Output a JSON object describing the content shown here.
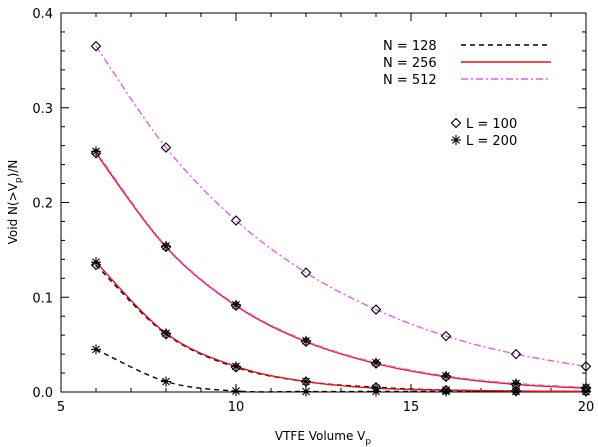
{
  "chart_data": {
    "type": "line",
    "title": "",
    "xlabel": "VTFE Volume V",
    "xlabel_sub": "p",
    "ylabel": "Void N(>V",
    "ylabel_sub": "p",
    "ylabel_tail": ")/N",
    "xlim": [
      5,
      20
    ],
    "ylim": [
      0,
      0.4
    ],
    "xticks": [
      5,
      10,
      15,
      20
    ],
    "xtick_labels": [
      "5",
      "10",
      "15",
      "20"
    ],
    "yticks": [
      0.0,
      0.1,
      0.2,
      0.3,
      0.4
    ],
    "ytick_labels": [
      "0.0",
      "0.1",
      "0.2",
      "0.3",
      "0.4"
    ],
    "grid": false,
    "legend_lines": [
      {
        "label": "N = 128",
        "color": "#000000",
        "dash": "dashed"
      },
      {
        "label": "N = 256",
        "color": "#e8101a",
        "dash": "solid"
      },
      {
        "label": "N = 512",
        "color": "#e060e8",
        "dash": "dashdot"
      }
    ],
    "legend_markers": [
      {
        "label": "L = 100",
        "marker": "diamond"
      },
      {
        "label": "L = 200",
        "marker": "asterisk"
      }
    ],
    "legend_position": "top-right",
    "series": [
      {
        "n": 128,
        "l": 100,
        "color": "#000000",
        "dash": "dashed",
        "marker": "diamond",
        "x": [
          6,
          8,
          10,
          12,
          14,
          16,
          18,
          20
        ],
        "y": [
          0.134,
          0.061,
          0.026,
          0.011,
          0.005,
          0.002,
          0.001,
          0.0005
        ]
      },
      {
        "n": 128,
        "l": 200,
        "color": "#000000",
        "dash": "dashed",
        "marker": "asterisk",
        "x": [
          6,
          8,
          10,
          12,
          14,
          16,
          18,
          20
        ],
        "y": [
          0.045,
          0.011,
          0.001,
          0.0,
          0.0,
          0.0,
          0.0,
          0.0
        ]
      },
      {
        "n": 256,
        "l": 100,
        "color": "#e8101a",
        "dash": "solid",
        "marker": "diamond",
        "x": [
          6,
          8,
          10,
          12,
          14,
          16,
          18,
          20
        ],
        "y": [
          0.252,
          0.153,
          0.091,
          0.053,
          0.03,
          0.016,
          0.008,
          0.004
        ]
      },
      {
        "n": 256,
        "l": 200,
        "color": "#e8101a",
        "dash": "solid",
        "marker": "asterisk",
        "x": [
          6,
          8,
          10,
          12,
          14,
          16,
          18,
          20
        ],
        "y": [
          0.137,
          0.062,
          0.027,
          0.011,
          0.004,
          0.002,
          0.001,
          0.0005
        ]
      },
      {
        "n": 512,
        "l": 100,
        "color": "#e060e8",
        "dash": "dashdot",
        "marker": "diamond",
        "x": [
          6,
          8,
          10,
          12,
          14,
          16,
          18,
          20
        ],
        "y": [
          0.365,
          0.258,
          0.181,
          0.126,
          0.087,
          0.059,
          0.04,
          0.027
        ]
      },
      {
        "n": 512,
        "l": 200,
        "color": "#e060e8",
        "dash": "dashdot",
        "marker": "asterisk",
        "x": [
          6,
          8,
          10,
          12,
          14,
          16,
          18,
          20
        ],
        "y": [
          0.254,
          0.154,
          0.092,
          0.054,
          0.031,
          0.017,
          0.009,
          0.005
        ]
      }
    ]
  }
}
